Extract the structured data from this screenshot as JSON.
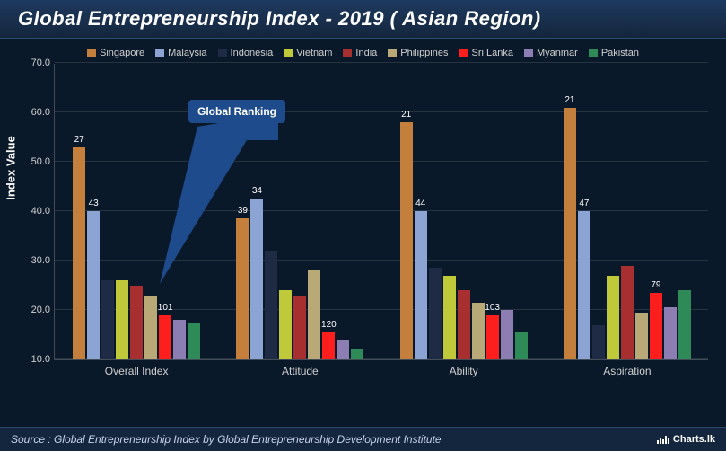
{
  "title": "Global Entrepreneurship Index - 2019 ( Asian Region)",
  "yAxisLabel": "Index Value",
  "ylim": [
    10,
    70
  ],
  "ytick_step": 10,
  "background_color": "#0a1929",
  "grid_color": "rgba(200,200,200,0.15)",
  "series": [
    {
      "name": "Singapore",
      "color": "#c47f3d"
    },
    {
      "name": "Malaysia",
      "color": "#8ca4d4"
    },
    {
      "name": "Indonesia",
      "color": "#1f2a44"
    },
    {
      "name": "Vietnam",
      "color": "#bfc93a"
    },
    {
      "name": "India",
      "color": "#a82f2f"
    },
    {
      "name": "Philippines",
      "color": "#b8a977"
    },
    {
      "name": "Sri Lanka",
      "color": "#ff1e1e"
    },
    {
      "name": "Myanmar",
      "color": "#8c7db3"
    },
    {
      "name": "Pakistan",
      "color": "#2e8b57"
    }
  ],
  "categories": [
    "Overall Index",
    "Attitude",
    "Ability",
    "Aspiration"
  ],
  "data": [
    {
      "label": "Overall Index",
      "values": [
        53,
        40,
        26,
        26,
        25,
        23,
        19,
        18,
        17.5
      ],
      "annotations": {
        "0": "27",
        "1": "43",
        "6": "101"
      }
    },
    {
      "label": "Attitude",
      "values": [
        38.5,
        42.5,
        32,
        24,
        23,
        28,
        15.5,
        14,
        12
      ],
      "annotations": {
        "0": "39",
        "1": "34",
        "6": "120"
      }
    },
    {
      "label": "Ability",
      "values": [
        58,
        40,
        28.5,
        27,
        24,
        21.5,
        19,
        20,
        15.5
      ],
      "annotations": {
        "0": "21",
        "1": "44",
        "6": "103"
      }
    },
    {
      "label": "Aspiration",
      "values": [
        61,
        40,
        17,
        27,
        29,
        19.5,
        23.5,
        20.5,
        24
      ],
      "annotations": {
        "0": "21",
        "1": "47",
        "6": "79"
      }
    }
  ],
  "callout": {
    "text": "Global Ranking"
  },
  "source": "Source : Global Entrepreneurship Index by Global Entrepreneurship Development Institute",
  "logo_text": "Charts.lk"
}
